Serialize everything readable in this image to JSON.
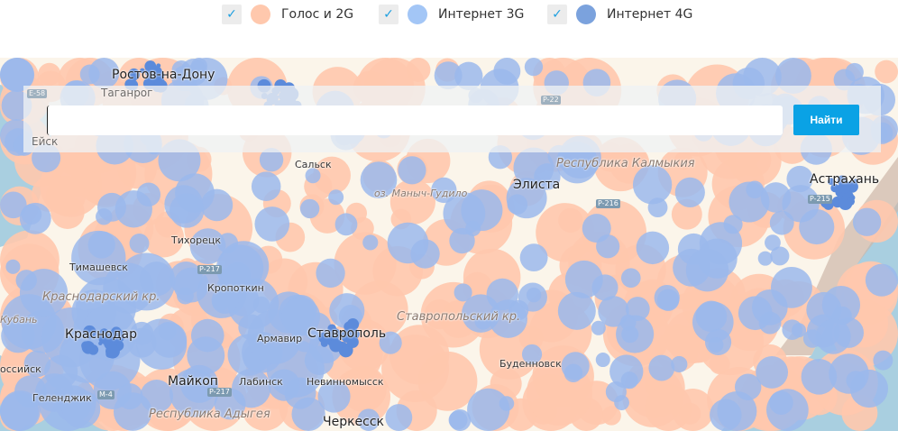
{
  "legend": {
    "items": [
      {
        "label": "Голос и 2G",
        "checked": true,
        "color": "#ffc8ad"
      },
      {
        "label": "Интернет 3G",
        "checked": true,
        "color": "#a3c6f6"
      },
      {
        "label": "Интернет 4G",
        "checked": true,
        "color": "#7ba2dd"
      }
    ],
    "check_icon": "✓"
  },
  "search": {
    "value": "",
    "button": "Найти"
  },
  "map": {
    "colors": {
      "land": "#fbf5ea",
      "sea": "#a9cfe0",
      "voice2g": "#ffc8ad",
      "internet3g": "#9bb8ec",
      "internet4g": "#5c8bdb",
      "steppe": "#cdb6a8"
    },
    "cities": [
      "Ростов-на-Дону",
      "Таганрог",
      "Ейск",
      "Сальск",
      "Элиста",
      "Астрахань",
      "Тихорецк",
      "Тимашевск",
      "Кропоткин",
      "Кубань",
      "Краснодар",
      "Армавир",
      "Ставрополь",
      "Буденновск",
      "Майкоп",
      "Лабинск",
      "Невинномысск",
      "Геленджик",
      "Черкесск",
      "оссийск"
    ],
    "regions": [
      "Республика Калмыкия",
      "Краснодарский кр.",
      "Ставропольский кр.",
      "Республика Адыгея"
    ],
    "lakes": [
      "оз. Маныч-Гудило"
    ],
    "roads": [
      "E-58",
      "P-22",
      "P-216",
      "P-215",
      "P-217",
      "M-4",
      "P-217"
    ]
  }
}
